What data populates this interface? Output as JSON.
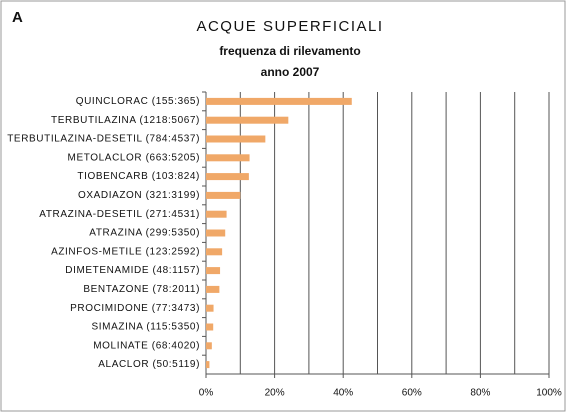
{
  "panel_label": "A",
  "chart_data": {
    "type": "barh",
    "title": "ACQUE SUPERFICIALI",
    "subtitle": [
      "frequenza di rilevamento",
      "anno 2007"
    ],
    "categories": [
      "QUINCLORAC (155:365)",
      "TERBUTILAZINA (1218:5067)",
      "TERBUTILAZINA-DESETIL (784:4537)",
      "METOLACLOR (663:5205)",
      "TIOBENCARB (103:824)",
      "OXADIAZON (321:3199)",
      "ATRAZINA-DESETIL (271:4531)",
      "ATRAZINA (299:5350)",
      "AZINFOS-METILE (123:2592)",
      "DIMETENAMIDE (48:1157)",
      "BENTAZONE (78:2011)",
      "PROCIMIDONE (77:3473)",
      "SIMAZINA (115:5350)",
      "MOLINATE (68:4020)",
      "ALACLOR (50:5119)"
    ],
    "values": [
      42.5,
      24.0,
      17.3,
      12.7,
      12.5,
      10.0,
      6.0,
      5.6,
      4.7,
      4.1,
      3.9,
      2.2,
      2.1,
      1.7,
      1.0
    ],
    "color": "#f0a868",
    "xlim": [
      0,
      100
    ],
    "xticks": [
      {
        "value": 0,
        "label": "0%"
      },
      {
        "value": 20,
        "label": "20%"
      },
      {
        "value": 40,
        "label": "40%"
      },
      {
        "value": 60,
        "label": "60%"
      },
      {
        "value": 80,
        "label": "80%"
      },
      {
        "value": 100,
        "label": "100%"
      }
    ],
    "minor_grid": [
      10,
      30,
      50,
      70,
      90
    ],
    "grid": true
  }
}
